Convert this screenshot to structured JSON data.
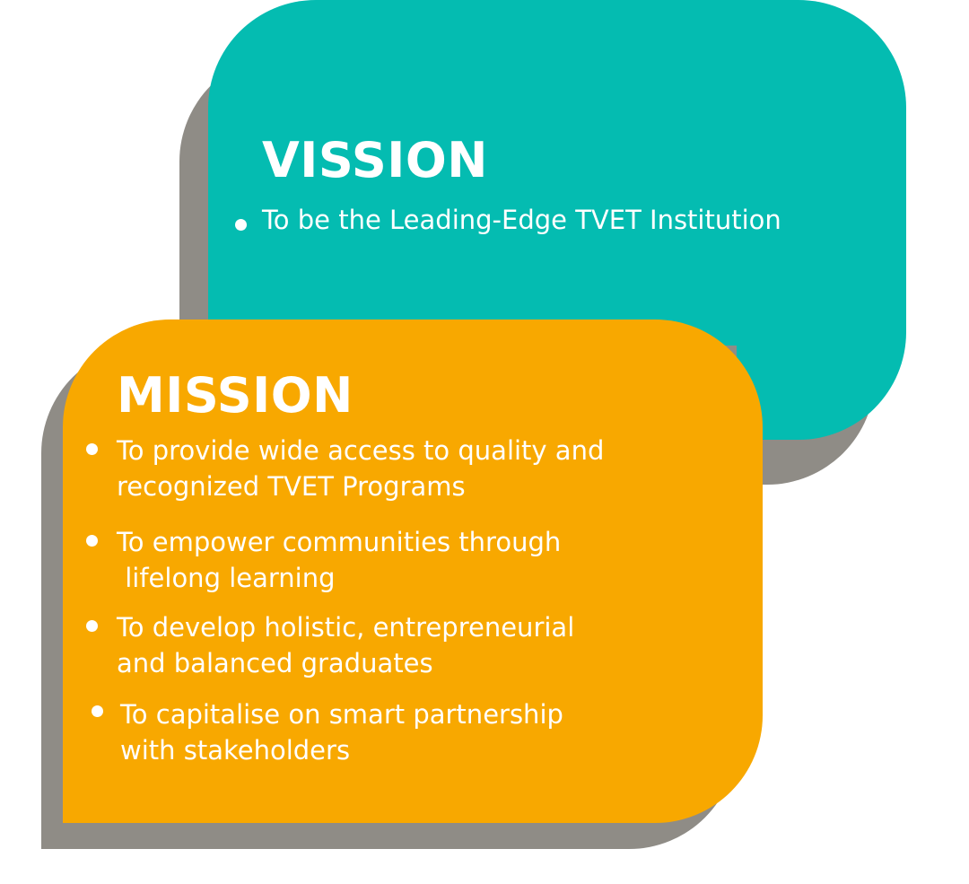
{
  "vision": {
    "title": "VISSION",
    "items": [
      "To be the Leading-Edge TVET Institution"
    ]
  },
  "mission": {
    "title": "MISSION",
    "items": [
      {
        "line1": "To provide wide access to quality and",
        "line2": "recognized TVET Programs"
      },
      {
        "line1": "To empower communities through",
        "line2": " lifelong learning"
      },
      {
        "line1": "To develop holistic, entrepreneurial",
        "line2": "and balanced graduates"
      },
      {
        "line1": "To capitalise on smart partnership",
        "line2": "with stakeholders"
      }
    ]
  },
  "colors": {
    "vision_bg": "#04bcb1",
    "mission_bg": "#f8a800",
    "shadow": "#8f8c86",
    "text": "#ffffff"
  }
}
